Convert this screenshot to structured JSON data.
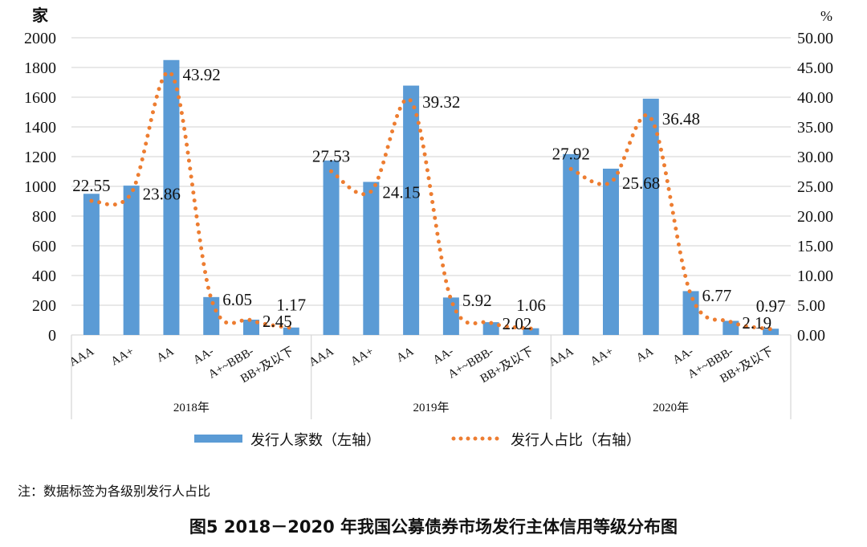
{
  "chart_data": {
    "type": "bar+line",
    "left_axis_unit": "家",
    "right_axis_unit": "%",
    "left_ylim": [
      0,
      2000
    ],
    "left_ticks": [
      "0",
      "200",
      "400",
      "600",
      "800",
      "1000",
      "1200",
      "1400",
      "1600",
      "1800",
      "2000"
    ],
    "right_ylim": [
      0,
      50
    ],
    "right_ticks": [
      "0.00",
      "5.00",
      "10.00",
      "15.00",
      "20.00",
      "25.00",
      "30.00",
      "35.00",
      "40.00",
      "45.00",
      "50.00"
    ],
    "grid": true,
    "categories": [
      "AAA",
      "AA+",
      "AA",
      "AA-",
      "A+~BBB-",
      "BB+及以下"
    ],
    "groups": [
      {
        "label": "2018年",
        "counts": [
          950,
          1005,
          1850,
          255,
          103,
          50
        ],
        "shares": [
          22.55,
          23.86,
          43.92,
          6.05,
          2.45,
          1.17
        ],
        "share_labels": [
          "22.55",
          "23.86",
          "43.92",
          "6.05",
          "2.45",
          "1.17"
        ]
      },
      {
        "label": "2019年",
        "counts": [
          1174,
          1030,
          1678,
          252,
          86,
          45
        ],
        "shares": [
          27.53,
          24.15,
          39.32,
          5.92,
          2.02,
          1.06
        ],
        "share_labels": [
          "27.53",
          "24.15",
          "39.32",
          "5.92",
          "2.02",
          "1.06"
        ]
      },
      {
        "label": "2020年",
        "counts": [
          1217,
          1119,
          1590,
          295,
          95,
          42
        ],
        "shares": [
          27.92,
          25.68,
          36.48,
          6.77,
          2.19,
          0.97
        ],
        "share_labels": [
          "27.92",
          "25.68",
          "36.48",
          "6.77",
          "2.19",
          "0.97"
        ]
      }
    ],
    "series": [
      {
        "name": "发行人家数（左轴）",
        "type": "bar",
        "axis": "left",
        "color": "#5b9bd5"
      },
      {
        "name": "发行人占比（右轴）",
        "type": "line",
        "axis": "right",
        "style": "dotted",
        "color": "#ed7d31"
      }
    ],
    "legend_position": "bottom"
  },
  "note": "注：数据标签为各级别发行人占比",
  "caption": "图5  2018－2020 年我国公募债券市场发行主体信用等级分布图"
}
